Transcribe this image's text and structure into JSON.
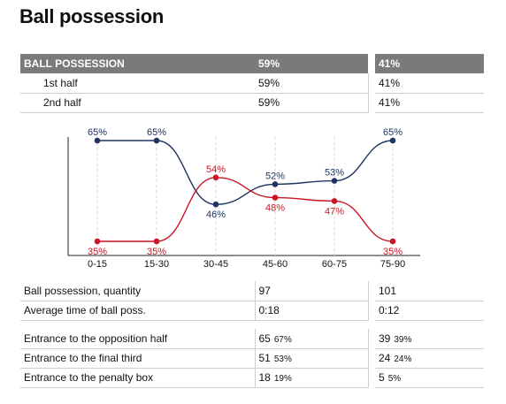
{
  "title": "Ball possession",
  "possession": {
    "header": {
      "label": "BALL POSSESSION",
      "team1": "59%",
      "team2": "41%"
    },
    "rows": [
      {
        "label": "1st half",
        "team1": "59%",
        "team2": "41%"
      },
      {
        "label": "2nd half",
        "team1": "59%",
        "team2": "41%"
      }
    ]
  },
  "chart_data": {
    "type": "line",
    "categories": [
      "0-15",
      "15-30",
      "30-45",
      "45-60",
      "60-75",
      "75-90"
    ],
    "series": [
      {
        "values": [
          65,
          65,
          46,
          52,
          53,
          65
        ],
        "labels": [
          "65%",
          "65%",
          "46%",
          "52%",
          "53%",
          "65%"
        ],
        "color": "#1f3460"
      },
      {
        "values": [
          35,
          35,
          54,
          48,
          47,
          35
        ],
        "labels": [
          "35%",
          "35%",
          "54%",
          "48%",
          "47%",
          "35%"
        ],
        "color": "#cc1526"
      }
    ],
    "ylim": [
      35,
      65
    ],
    "grid": "vertical dashed"
  },
  "stats": {
    "block1": [
      {
        "label": "Ball possession, quantity",
        "team1": "97",
        "team2": "101"
      },
      {
        "label": "Average time of ball poss.",
        "team1": "0:18",
        "team2": "0:12"
      }
    ],
    "block2": [
      {
        "label": "Entrance to the opposition half",
        "team1": "65",
        "team1_pct": "67%",
        "team2": "39",
        "team2_pct": "39%"
      },
      {
        "label": "Entrance to the final third",
        "team1": "51",
        "team1_pct": "53%",
        "team2": "24",
        "team2_pct": "24%"
      },
      {
        "label": "Entrance to the penalty box",
        "team1": "18",
        "team1_pct": "19%",
        "team2": "5",
        "team2_pct": "5%"
      }
    ]
  }
}
